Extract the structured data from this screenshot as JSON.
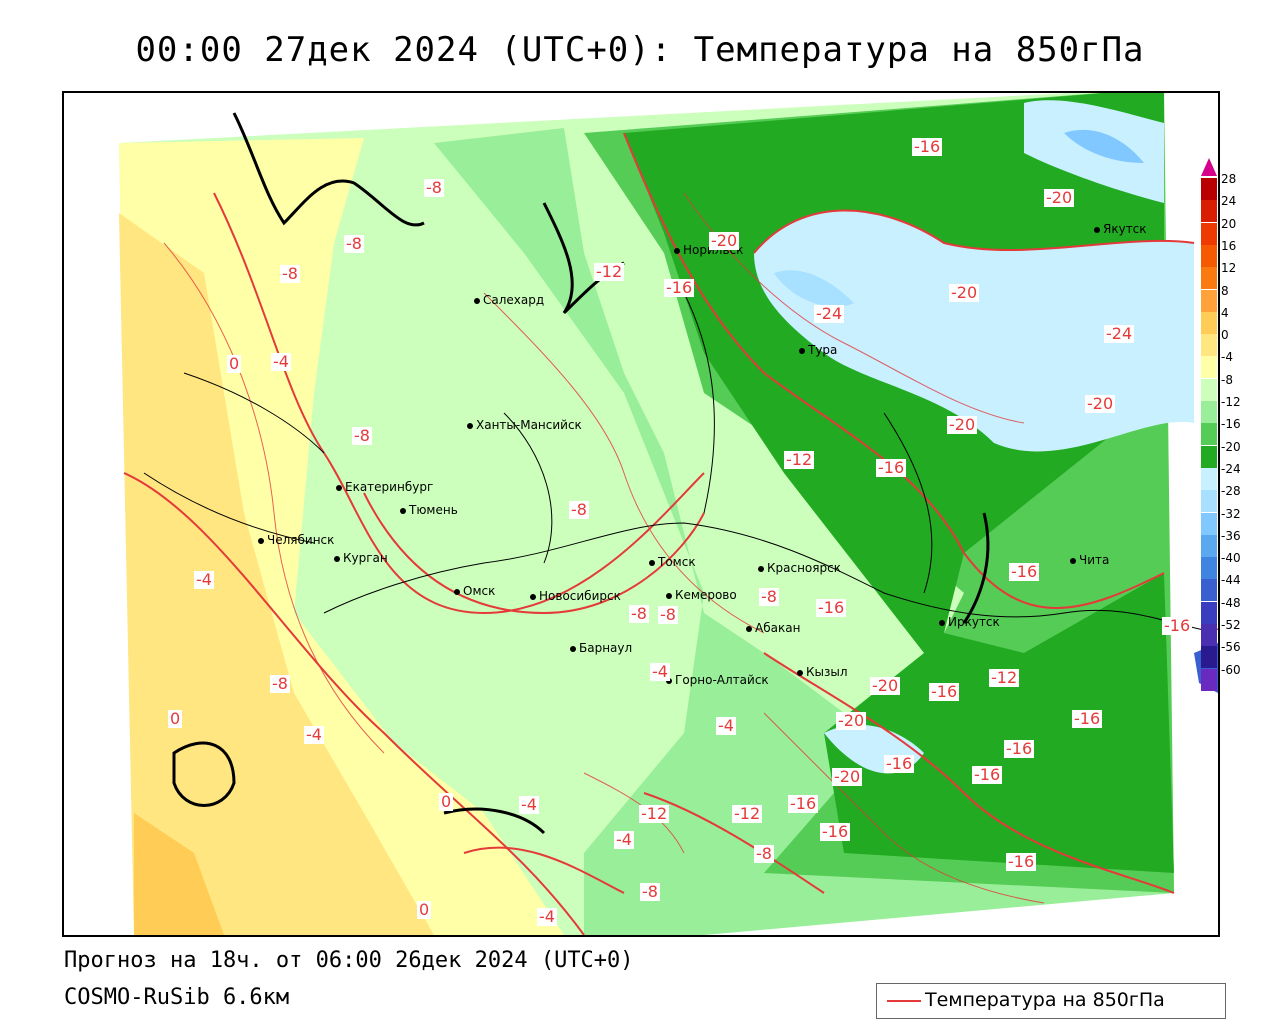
{
  "title": "00:00 27дек 2024 (UTC+0): Температура на 850гПа",
  "forecast_line": "Прогноз на 18ч. от 06:00 26дек 2024 (UTC+0)",
  "model_line": "COSMO-RuSib 6.6км",
  "legend": {
    "label": "Температура на 850гПа",
    "line_color": "#e43a3a"
  },
  "color_scale": {
    "labels": [
      "28",
      "24",
      "20",
      "16",
      "12",
      "8",
      "4",
      "0",
      "-4",
      "-8",
      "-12",
      "-16",
      "-20",
      "-24",
      "-28",
      "-32",
      "-36",
      "-40",
      "-44",
      "-48",
      "-52",
      "-56",
      "-60"
    ],
    "colors": [
      "#b80000",
      "#d91d00",
      "#ee3a00",
      "#f65a00",
      "#fb7a10",
      "#ffa23a",
      "#ffcc55",
      "#ffe680",
      "#ffffa8",
      "#ccffbb",
      "#99ee99",
      "#55cc55",
      "#22aa22",
      "#c8f0ff",
      "#a8e0ff",
      "#80c8ff",
      "#5aa8f0",
      "#3f84e0",
      "#3a5fd0",
      "#3b3dbf",
      "#4a2fb0",
      "#2a1a90",
      "#6a2ac0"
    ]
  },
  "cities": [
    {
      "name": "Салехард"
    },
    {
      "name": "Норильск"
    },
    {
      "name": "Якутск"
    },
    {
      "name": "Тура"
    },
    {
      "name": "Ханты-Мансийск"
    },
    {
      "name": "Екатеринбург"
    },
    {
      "name": "Тюмень"
    },
    {
      "name": "Челябинск"
    },
    {
      "name": "Курган"
    },
    {
      "name": "Омск"
    },
    {
      "name": "Новосибирск"
    },
    {
      "name": "Томск"
    },
    {
      "name": "Кемерово"
    },
    {
      "name": "Красноярск"
    },
    {
      "name": "Барнаул"
    },
    {
      "name": "Абакан"
    },
    {
      "name": "Горно-Алтайск"
    },
    {
      "name": "Кызыл"
    },
    {
      "name": "Иркутск"
    },
    {
      "name": "Чита"
    }
  ],
  "contour_labels": [
    "-16",
    "-20",
    "-20",
    "-24",
    "-20",
    "-24",
    "-20",
    "-20",
    "-16",
    "-12",
    "-16",
    "-12",
    "-16",
    "-8",
    "-8",
    "-8",
    "-4",
    "-8",
    "0",
    "-4",
    "-8",
    "-8",
    "-8",
    "-8",
    "-4",
    "-16",
    "-16",
    "-20",
    "-16",
    "-12",
    "-16",
    "-16",
    "-20",
    "-16",
    "-16",
    "-20",
    "-16",
    "-12",
    "-16",
    "-16",
    "-16",
    "-8",
    "-4",
    "-4",
    "0",
    "-4",
    "0",
    "0",
    "-4",
    "-8",
    "-12",
    "-8",
    "-4"
  ]
}
